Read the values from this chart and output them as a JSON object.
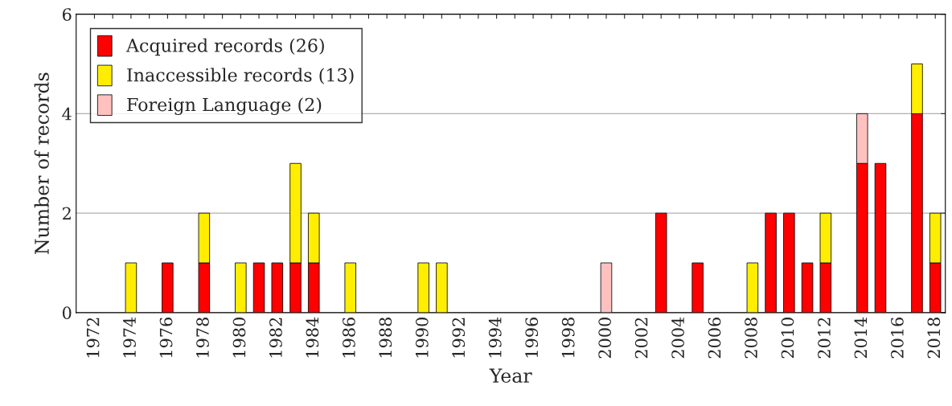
{
  "chart_data": {
    "type": "bar",
    "stacked": true,
    "xlabel": "Year",
    "ylabel": "Number of records",
    "x": [
      1972,
      1973,
      1974,
      1975,
      1976,
      1977,
      1978,
      1979,
      1980,
      1981,
      1982,
      1983,
      1984,
      1985,
      1986,
      1987,
      1988,
      1989,
      1990,
      1991,
      1992,
      1993,
      1994,
      1995,
      1996,
      1997,
      1998,
      1999,
      2000,
      2001,
      2002,
      2003,
      2004,
      2005,
      2006,
      2007,
      2008,
      2009,
      2010,
      2011,
      2012,
      2013,
      2014,
      2015,
      2016,
      2017,
      2018
    ],
    "series": [
      {
        "name": "Acquired records (26)",
        "color": "#ff0000",
        "values": [
          0,
          0,
          0,
          0,
          1,
          0,
          1,
          0,
          0,
          1,
          1,
          1,
          1,
          0,
          0,
          0,
          0,
          0,
          0,
          0,
          0,
          0,
          0,
          0,
          0,
          0,
          0,
          0,
          0,
          0,
          0,
          2,
          0,
          1,
          0,
          0,
          0,
          2,
          2,
          1,
          1,
          0,
          3,
          3,
          0,
          4,
          1
        ]
      },
      {
        "name": "Inaccessible records (13)",
        "color": "#ffee00",
        "values": [
          0,
          0,
          1,
          0,
          0,
          0,
          1,
          0,
          1,
          0,
          0,
          2,
          1,
          0,
          1,
          0,
          0,
          0,
          1,
          1,
          0,
          0,
          0,
          0,
          0,
          0,
          0,
          0,
          0,
          0,
          0,
          0,
          0,
          0,
          0,
          0,
          1,
          0,
          0,
          0,
          1,
          0,
          0,
          0,
          0,
          1,
          1
        ]
      },
      {
        "name": "Foreign Language (2)",
        "color": "#ffc0c0",
        "values": [
          0,
          0,
          0,
          0,
          0,
          0,
          0,
          0,
          0,
          0,
          0,
          0,
          0,
          0,
          0,
          0,
          0,
          0,
          0,
          0,
          0,
          0,
          0,
          0,
          0,
          0,
          0,
          0,
          1,
          0,
          0,
          0,
          0,
          0,
          0,
          0,
          0,
          0,
          0,
          0,
          0,
          0,
          1,
          0,
          0,
          0,
          0
        ]
      }
    ],
    "xlim": [
      1971,
      2018.55
    ],
    "xticks": [
      1972,
      {
        "value": 1973,
        "label": null
      },
      1974,
      {
        "value": 1975,
        "label": null
      },
      1976,
      {
        "value": 1977,
        "label": null
      },
      1978,
      {
        "value": 1979,
        "label": null
      },
      1980,
      {
        "value": 1981,
        "label": null
      },
      1982,
      {
        "value": 1983,
        "label": null
      },
      1984,
      {
        "value": 1985,
        "label": null
      },
      1986,
      {
        "value": 1987,
        "label": null
      },
      1988,
      {
        "value": 1989,
        "label": null
      },
      1990,
      {
        "value": 1991,
        "label": null
      },
      1992,
      {
        "value": 1993,
        "label": null
      },
      1994,
      {
        "value": 1995,
        "label": null
      },
      1996,
      {
        "value": 1997,
        "label": null
      },
      1998,
      {
        "value": 1999,
        "label": null
      },
      2000,
      {
        "value": 2001,
        "label": null
      },
      2002,
      {
        "value": 2003,
        "label": null
      },
      2004,
      {
        "value": 2005,
        "label": null
      },
      2006,
      {
        "value": 2007,
        "label": null
      },
      2008,
      {
        "value": 2009,
        "label": null
      },
      2010,
      {
        "value": 2011,
        "label": null
      },
      2012,
      {
        "value": 2013,
        "label": null
      },
      2014,
      {
        "value": 2015,
        "label": null
      },
      2016,
      {
        "value": 2017,
        "label": null
      },
      2018
    ],
    "ylim": [
      0,
      6
    ],
    "yticks": [
      0,
      2,
      4,
      6
    ],
    "grid": "y",
    "legend": "top left"
  }
}
